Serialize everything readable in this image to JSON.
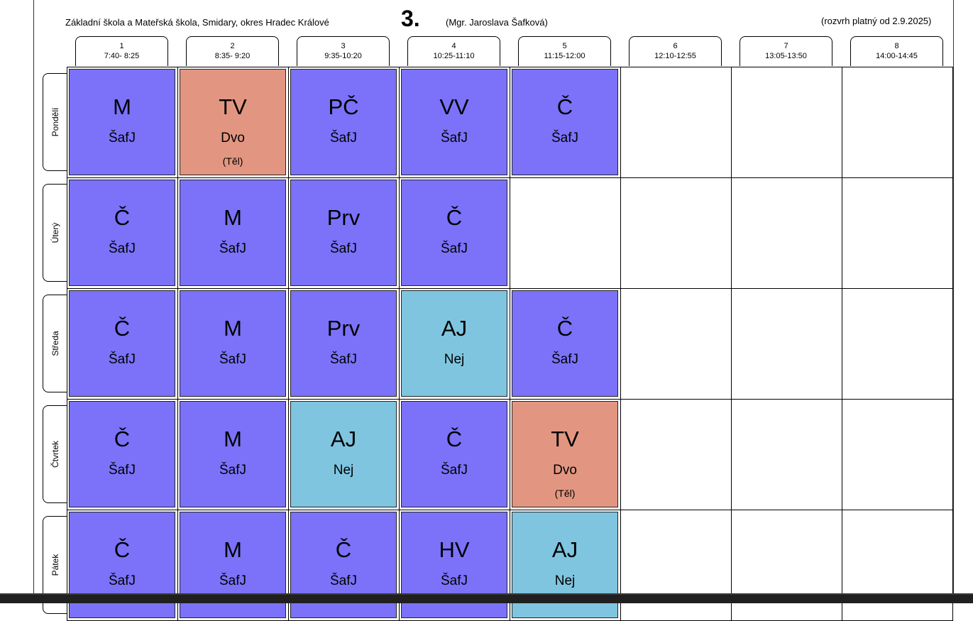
{
  "header": {
    "school": "Základní škola a Mateřská škola, Smidary, okres Hradec Králové",
    "class": "3.",
    "teacher": "(Mgr. Jaroslava Šafková)",
    "valid_from": "(rozvrh platný od 2.9.2025)"
  },
  "periods": [
    {
      "num": "1",
      "time": "7:40- 8:25"
    },
    {
      "num": "2",
      "time": "8:35- 9:20"
    },
    {
      "num": "3",
      "time": "9:35-10:20"
    },
    {
      "num": "4",
      "time": "10:25-11:10"
    },
    {
      "num": "5",
      "time": "11:15-12:00"
    },
    {
      "num": "6",
      "time": "12:10-12:55"
    },
    {
      "num": "7",
      "time": "13:05-13:50"
    },
    {
      "num": "8",
      "time": "14:00-14:45"
    }
  ],
  "colors": {
    "czech_class": "#7B72F9",
    "pe": "#E29681",
    "english": "#7FC5E0"
  },
  "days": [
    {
      "name": "Pondělí",
      "lessons": [
        {
          "subject": "M",
          "teacher": "ŠafJ",
          "room": "",
          "color": "#7B72F9"
        },
        {
          "subject": "TV",
          "teacher": "Dvo",
          "room": "(Těl)",
          "color": "#E29681"
        },
        {
          "subject": "PČ",
          "teacher": "ŠafJ",
          "room": "",
          "color": "#7B72F9"
        },
        {
          "subject": "VV",
          "teacher": "ŠafJ",
          "room": "",
          "color": "#7B72F9"
        },
        {
          "subject": "Č",
          "teacher": "ŠafJ",
          "room": "",
          "color": "#7B72F9"
        },
        null,
        null,
        null
      ]
    },
    {
      "name": "Úterý",
      "lessons": [
        {
          "subject": "Č",
          "teacher": "ŠafJ",
          "room": "",
          "color": "#7B72F9"
        },
        {
          "subject": "M",
          "teacher": "ŠafJ",
          "room": "",
          "color": "#7B72F9"
        },
        {
          "subject": "Prv",
          "teacher": "ŠafJ",
          "room": "",
          "color": "#7B72F9"
        },
        {
          "subject": "Č",
          "teacher": "ŠafJ",
          "room": "",
          "color": "#7B72F9"
        },
        null,
        null,
        null,
        null
      ]
    },
    {
      "name": "Středa",
      "lessons": [
        {
          "subject": "Č",
          "teacher": "ŠafJ",
          "room": "",
          "color": "#7B72F9"
        },
        {
          "subject": "M",
          "teacher": "ŠafJ",
          "room": "",
          "color": "#7B72F9"
        },
        {
          "subject": "Prv",
          "teacher": "ŠafJ",
          "room": "",
          "color": "#7B72F9"
        },
        {
          "subject": "AJ",
          "teacher": "Nej",
          "room": "",
          "color": "#7FC5E0"
        },
        {
          "subject": "Č",
          "teacher": "ŠafJ",
          "room": "",
          "color": "#7B72F9"
        },
        null,
        null,
        null
      ]
    },
    {
      "name": "Čtvrtek",
      "lessons": [
        {
          "subject": "Č",
          "teacher": "ŠafJ",
          "room": "",
          "color": "#7B72F9"
        },
        {
          "subject": "M",
          "teacher": "ŠafJ",
          "room": "",
          "color": "#7B72F9"
        },
        {
          "subject": "AJ",
          "teacher": "Nej",
          "room": "",
          "color": "#7FC5E0"
        },
        {
          "subject": "Č",
          "teacher": "ŠafJ",
          "room": "",
          "color": "#7B72F9"
        },
        {
          "subject": "TV",
          "teacher": "Dvo",
          "room": "(Těl)",
          "color": "#E29681"
        },
        null,
        null,
        null
      ]
    },
    {
      "name": "Pátek",
      "lessons": [
        {
          "subject": "Č",
          "teacher": "ŠafJ",
          "room": "",
          "color": "#7B72F9"
        },
        {
          "subject": "M",
          "teacher": "ŠafJ",
          "room": "",
          "color": "#7B72F9"
        },
        {
          "subject": "Č",
          "teacher": "ŠafJ",
          "room": "",
          "color": "#7B72F9"
        },
        {
          "subject": "HV",
          "teacher": "ŠafJ",
          "room": "",
          "color": "#7B72F9"
        },
        {
          "subject": "AJ",
          "teacher": "Nej",
          "room": "",
          "color": "#7FC5E0"
        },
        null,
        null,
        null
      ]
    }
  ]
}
